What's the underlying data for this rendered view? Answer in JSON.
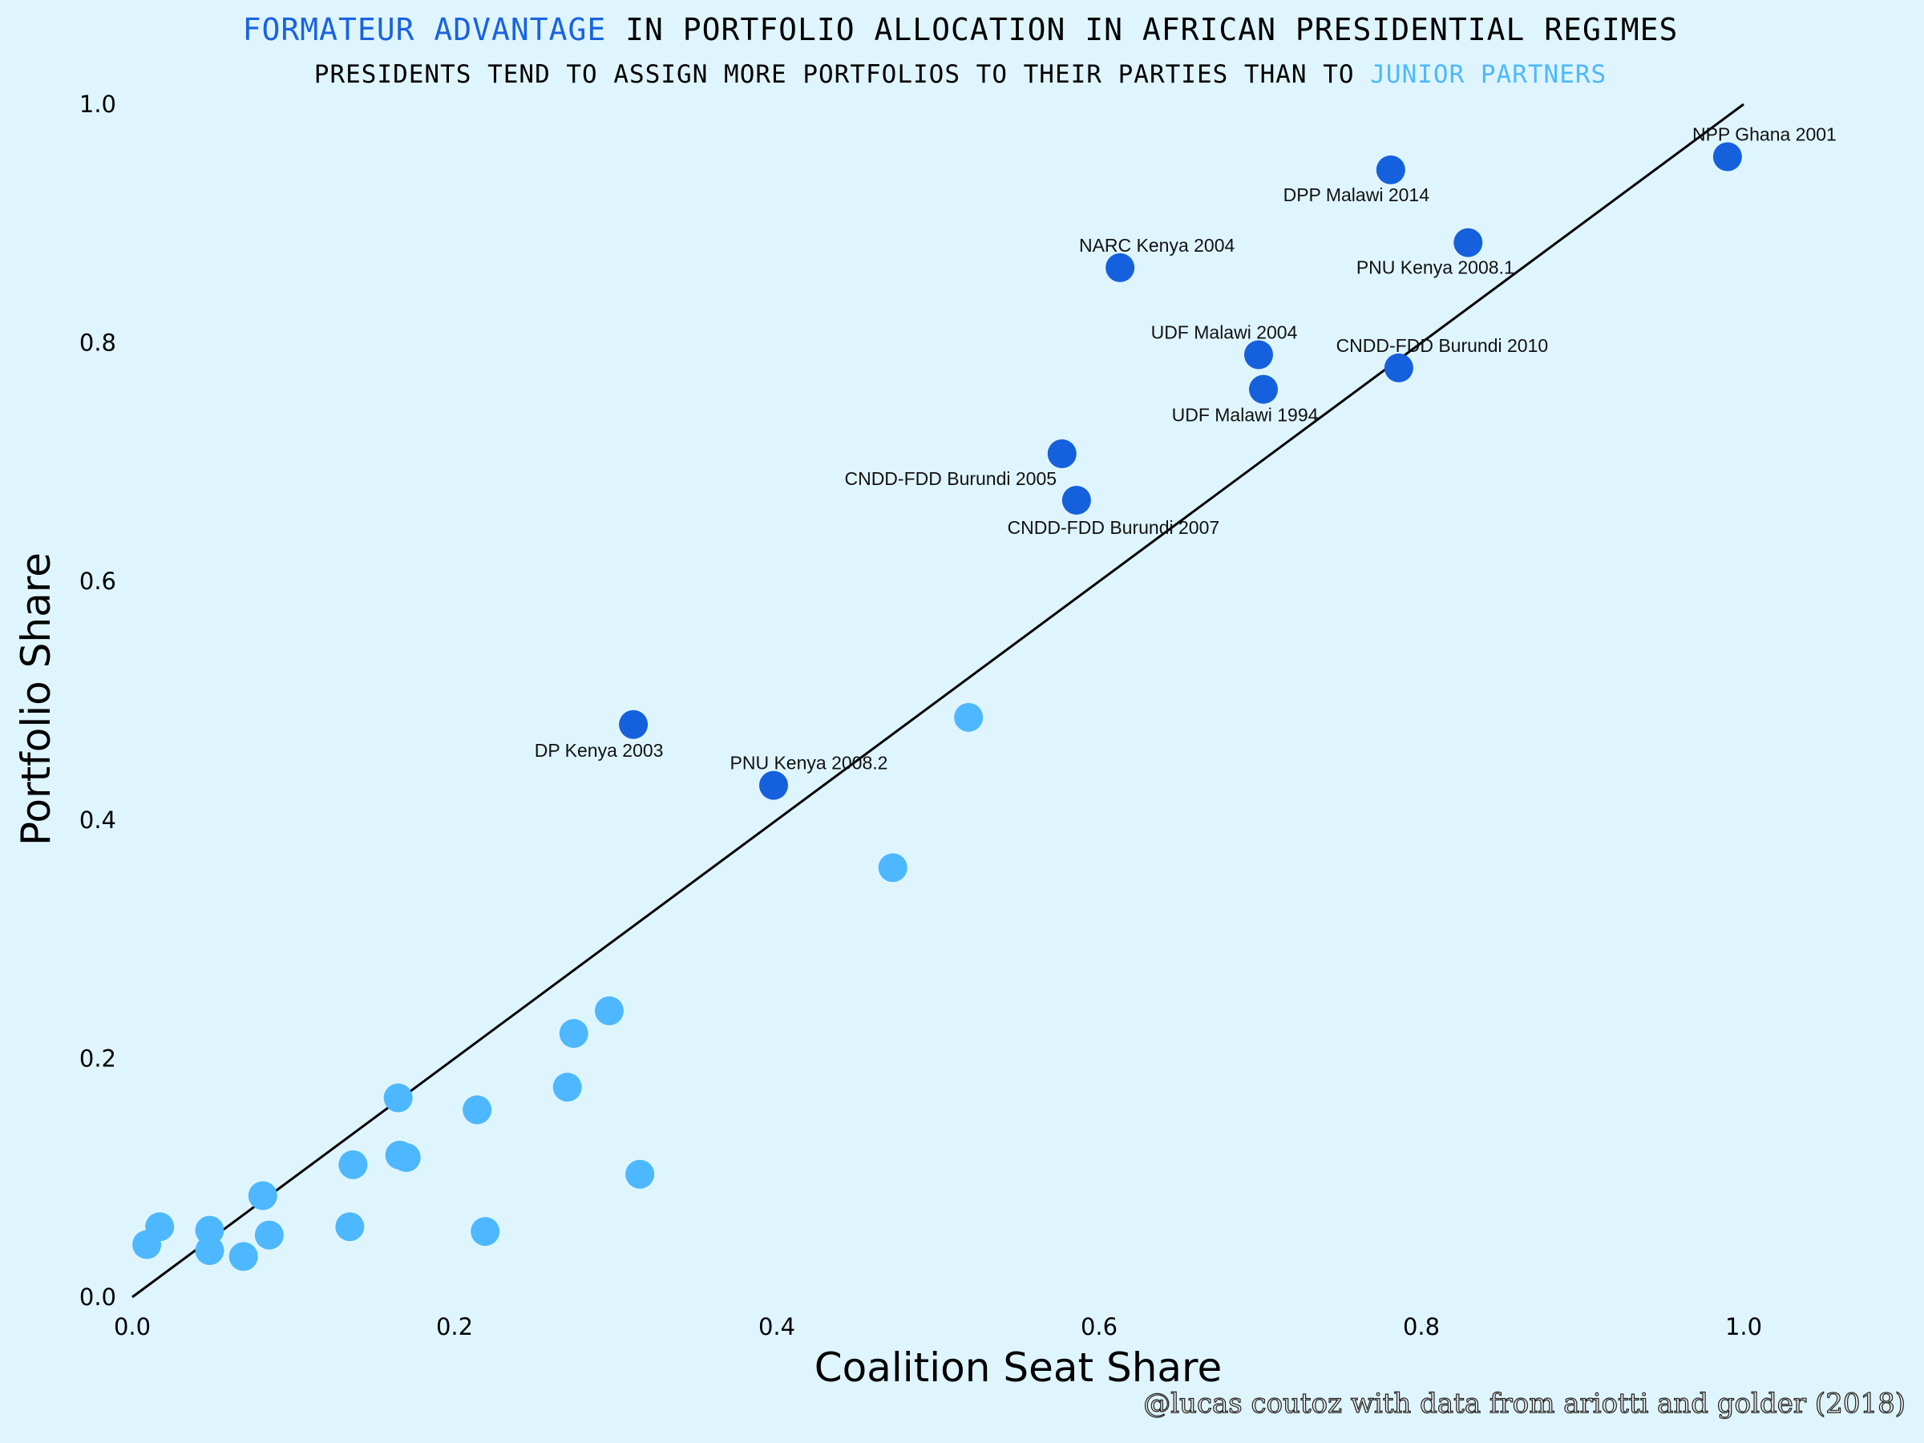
{
  "chart_data": {
    "type": "scatter",
    "title_parts": [
      {
        "text": "FORMATEUR ADVANTAGE",
        "color": "#1a63e0"
      },
      {
        "text": " IN PORTFOLIO ALLOCATION IN AFRICAN PRESIDENTIAL REGIMES",
        "color": "#000000"
      }
    ],
    "subtitle_parts": [
      {
        "text": "PRESIDENTS TEND TO ASSIGN MORE PORTFOLIOS TO THEIR PARTIES THAN TO ",
        "color": "#000000"
      },
      {
        "text": "JUNIOR PARTNERS",
        "color": "#4db8ff"
      }
    ],
    "xlabel": "Coalition Seat Share",
    "ylabel": "Portfolio Share",
    "caption": "@lucas coutoz with data from ariotti and golder (2018)",
    "xlim": [
      0,
      1
    ],
    "ylim": [
      0,
      1
    ],
    "xticks": [
      "0.0",
      "0.2",
      "0.4",
      "0.6",
      "0.8",
      "1.0"
    ],
    "yticks": [
      "0.0",
      "0.2",
      "0.4",
      "0.6",
      "0.8",
      "1.0"
    ],
    "grid": false,
    "reference_line": {
      "from": [
        0,
        0
      ],
      "to": [
        1,
        1
      ],
      "color": "#000000"
    },
    "series": [
      {
        "name": "Formateur",
        "color": "#1560dd",
        "points": [
          {
            "x": 0.99,
            "y": 0.956,
            "label": "NPP Ghana 2001"
          },
          {
            "x": 0.781,
            "y": 0.945,
            "label": "DPP Malawi 2014"
          },
          {
            "x": 0.829,
            "y": 0.884,
            "label": "PNU Kenya 2008.1"
          },
          {
            "x": 0.613,
            "y": 0.863,
            "label": "NARC Kenya 2004"
          },
          {
            "x": 0.699,
            "y": 0.79,
            "label": "UDF Malawi 2004"
          },
          {
            "x": 0.786,
            "y": 0.779,
            "label": "CNDD-FDD Burundi 2010"
          },
          {
            "x": 0.702,
            "y": 0.761,
            "label": "UDF Malawi 1994"
          },
          {
            "x": 0.577,
            "y": 0.707,
            "label": "CNDD-FDD Burundi 2005"
          },
          {
            "x": 0.586,
            "y": 0.668,
            "label": "CNDD-FDD Burundi 2007"
          },
          {
            "x": 0.311,
            "y": 0.48,
            "label": "DP Kenya 2003"
          },
          {
            "x": 0.398,
            "y": 0.429,
            "label": "PNU Kenya 2008.2"
          }
        ]
      },
      {
        "name": "Junior partner",
        "color": "#4db8ff",
        "points": [
          {
            "x": 0.519,
            "y": 0.486
          },
          {
            "x": 0.472,
            "y": 0.36
          },
          {
            "x": 0.296,
            "y": 0.24
          },
          {
            "x": 0.274,
            "y": 0.221
          },
          {
            "x": 0.27,
            "y": 0.176
          },
          {
            "x": 0.315,
            "y": 0.103
          },
          {
            "x": 0.214,
            "y": 0.157
          },
          {
            "x": 0.219,
            "y": 0.055
          },
          {
            "x": 0.165,
            "y": 0.167
          },
          {
            "x": 0.166,
            "y": 0.119
          },
          {
            "x": 0.17,
            "y": 0.117
          },
          {
            "x": 0.137,
            "y": 0.111
          },
          {
            "x": 0.135,
            "y": 0.059
          },
          {
            "x": 0.081,
            "y": 0.085
          },
          {
            "x": 0.085,
            "y": 0.052
          },
          {
            "x": 0.069,
            "y": 0.034
          },
          {
            "x": 0.048,
            "y": 0.056
          },
          {
            "x": 0.048,
            "y": 0.039
          },
          {
            "x": 0.017,
            "y": 0.059
          },
          {
            "x": 0.009,
            "y": 0.044
          }
        ]
      }
    ]
  }
}
